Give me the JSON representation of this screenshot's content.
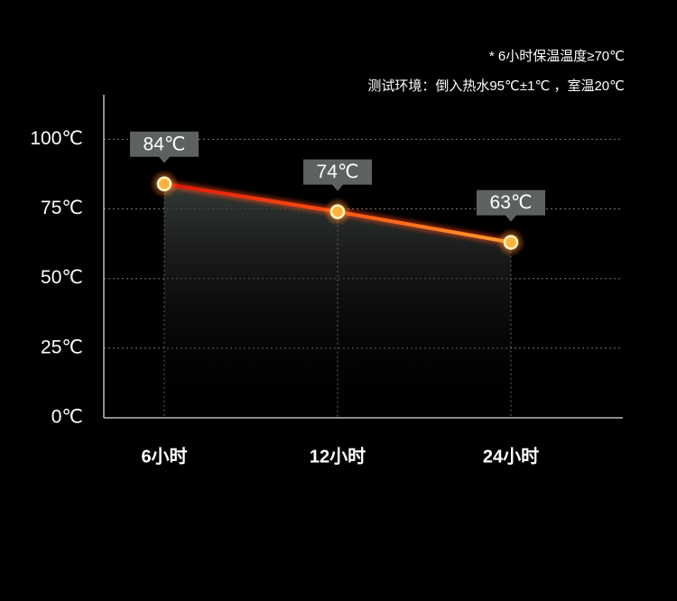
{
  "chart_data": {
    "type": "line",
    "annotations": [
      "* 6小时保温温度≥70℃",
      "测试环境：倒入热水95℃±1℃ ，室温20℃"
    ],
    "categories": [
      "6小时",
      "12小时",
      "24小时"
    ],
    "values": [
      84,
      74,
      63
    ],
    "value_labels": [
      "84℃",
      "74℃",
      "63℃"
    ],
    "color": "#ff4a12",
    "ylim": [
      0,
      116
    ],
    "yticks": [
      {
        "value": 0,
        "label": "0℃"
      },
      {
        "value": 25,
        "label": "25℃"
      },
      {
        "value": 50,
        "label": "50℃"
      },
      {
        "value": 75,
        "label": "75℃"
      },
      {
        "value": 100,
        "label": "100℃"
      }
    ],
    "grid": true
  }
}
